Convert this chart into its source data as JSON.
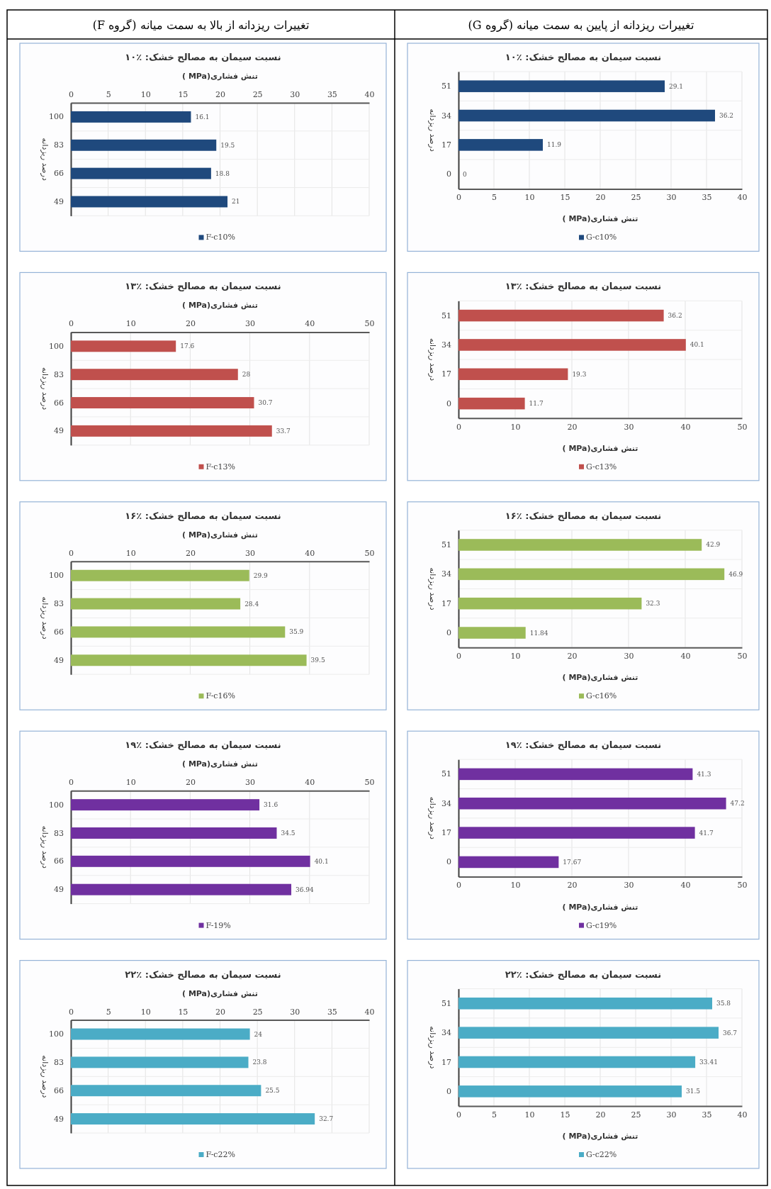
{
  "chart_data": [
    {
      "type": "bar",
      "orientation": "horizontal",
      "title": "نسبت سیمان به مصالح خشک: ٪۱۰",
      "annotations": [
        "تغییرات ریزدانه از بالا به سمت میانه (گروه F)"
      ],
      "x2label": "تنش فشاری(MPa )",
      "ylabel": "درصد ریزدانه",
      "categories": [
        "100",
        "83",
        "66",
        "49"
      ],
      "x2lim": [
        0,
        40
      ],
      "x2ticks": [
        0,
        5,
        10,
        15,
        20,
        25,
        30,
        35,
        40
      ],
      "grid": true,
      "legend": "bottom",
      "data_labels": true,
      "series": [
        {
          "name": "F-c10%",
          "color": "#1f497d",
          "values": [
            16.1,
            19.5,
            18.8,
            21
          ]
        }
      ]
    },
    {
      "type": "bar",
      "orientation": "horizontal",
      "title": "نسبت سیمان به مصالح خشک: ٪۱۰",
      "annotations": [
        "تغییرات ریزدانه از پایین به سمت میانه (گروه G)"
      ],
      "xlabel": "تنش فشاری(MPa )",
      "ylabel": "درصد ریزدانه",
      "categories": [
        "51",
        "34",
        "17",
        "0"
      ],
      "xlim": [
        0,
        40
      ],
      "xticks": [
        0,
        5,
        10,
        15,
        20,
        25,
        30,
        35,
        40
      ],
      "grid": true,
      "legend": "bottom",
      "data_labels": true,
      "series": [
        {
          "name": "G-c10%",
          "color": "#1f497d",
          "values": [
            29.1,
            36.2,
            11.9,
            0
          ]
        }
      ]
    },
    {
      "type": "bar",
      "orientation": "horizontal",
      "title": "نسبت سیمان به مصالح خشک: ٪۱۳",
      "x2label": "تنش فشاری(MPa )",
      "ylabel": "درصد ریزدانه",
      "categories": [
        "100",
        "83",
        "66",
        "49"
      ],
      "x2lim": [
        0,
        50
      ],
      "x2ticks": [
        0,
        10,
        20,
        30,
        40,
        50
      ],
      "grid": true,
      "legend": "bottom",
      "data_labels": true,
      "series": [
        {
          "name": "F-c13%",
          "color": "#c0504d",
          "values": [
            17.6,
            28,
            30.7,
            33.7
          ]
        }
      ]
    },
    {
      "type": "bar",
      "orientation": "horizontal",
      "title": "نسبت سیمان به مصالح خشک: ٪۱۳",
      "xlabel": "تنش فشاری(MPa )",
      "ylabel": "درصد ریزدانه",
      "categories": [
        "51",
        "34",
        "17",
        "0"
      ],
      "xlim": [
        0,
        50
      ],
      "xticks": [
        0,
        10,
        20,
        30,
        40,
        50
      ],
      "grid": true,
      "legend": "bottom",
      "data_labels": true,
      "series": [
        {
          "name": "G-c13%",
          "color": "#c0504d",
          "values": [
            36.2,
            40.1,
            19.3,
            11.7
          ]
        }
      ]
    },
    {
      "type": "bar",
      "orientation": "horizontal",
      "title": "نسبت سیمان به مصالح خشک: ٪۱۶",
      "x2label": "تنش فشاری(MPa )",
      "ylabel": "درصد ریزدانه",
      "categories": [
        "100",
        "83",
        "66",
        "49"
      ],
      "x2lim": [
        0,
        50
      ],
      "x2ticks": [
        0,
        10,
        20,
        30,
        40,
        50
      ],
      "grid": true,
      "legend": "bottom",
      "data_labels": true,
      "series": [
        {
          "name": "F-c16%",
          "color": "#9bbb59",
          "values": [
            29.9,
            28.4,
            35.9,
            39.5
          ]
        }
      ]
    },
    {
      "type": "bar",
      "orientation": "horizontal",
      "title": "نسبت سیمان به مصالح خشک: ٪۱۶",
      "xlabel": "تنش فشاری(MPa )",
      "ylabel": "درصد ریزدانه",
      "categories": [
        "51",
        "34",
        "17",
        "0"
      ],
      "xlim": [
        0,
        50
      ],
      "xticks": [
        0,
        10,
        20,
        30,
        40,
        50
      ],
      "grid": true,
      "legend": "bottom",
      "data_labels": true,
      "series": [
        {
          "name": "G-c16%",
          "color": "#9bbb59",
          "values": [
            42.9,
            46.9,
            32.3,
            11.84
          ]
        }
      ]
    },
    {
      "type": "bar",
      "orientation": "horizontal",
      "title": "نسبت سیمان به مصالح خشک: ٪۱۹",
      "x2label": "تنش فشاری(MPa )",
      "ylabel": "درصد ریزدانه",
      "categories": [
        "100",
        "83",
        "66",
        "49"
      ],
      "x2lim": [
        0,
        50
      ],
      "x2ticks": [
        0,
        10,
        20,
        30,
        40,
        50
      ],
      "grid": true,
      "legend": "bottom",
      "data_labels": true,
      "series": [
        {
          "name": "F-19%",
          "color": "#7030a0",
          "values": [
            31.6,
            34.5,
            40.1,
            36.94
          ]
        }
      ]
    },
    {
      "type": "bar",
      "orientation": "horizontal",
      "title": "نسبت سیمان به مصالح خشک: ٪۱۹",
      "xlabel": "تنش فشاری(MPa )",
      "ylabel": "درصد ریزدانه",
      "categories": [
        "51",
        "34",
        "17",
        "0"
      ],
      "xlim": [
        0,
        50
      ],
      "xticks": [
        0,
        10,
        20,
        30,
        40,
        50
      ],
      "grid": true,
      "legend": "bottom",
      "data_labels": true,
      "series": [
        {
          "name": "G-c19%",
          "color": "#7030a0",
          "values": [
            41.3,
            47.2,
            41.7,
            17.67
          ]
        }
      ]
    },
    {
      "type": "bar",
      "orientation": "horizontal",
      "title": "نسبت سیمان به مصالح خشک: ٪۲۲",
      "x2label": "تنش فشاری(MPa )",
      "ylabel": "درصد ریزدانه",
      "categories": [
        "100",
        "83",
        "66",
        "49"
      ],
      "x2lim": [
        0,
        40
      ],
      "x2ticks": [
        0,
        5,
        10,
        15,
        20,
        25,
        30,
        35,
        40
      ],
      "grid": true,
      "legend": "bottom",
      "data_labels": true,
      "series": [
        {
          "name": "F-c22%",
          "color": "#4bacc6",
          "values": [
            24,
            23.8,
            25.5,
            32.7
          ]
        }
      ]
    },
    {
      "type": "bar",
      "orientation": "horizontal",
      "title": "نسبت سیمان به مصالح خشک: ٪۲۲",
      "xlabel": "تنش فشاری(MPa )",
      "ylabel": "درصد ریزدانه",
      "categories": [
        "51",
        "34",
        "17",
        "0"
      ],
      "xlim": [
        0,
        40
      ],
      "xticks": [
        0,
        5,
        10,
        15,
        20,
        25,
        30,
        35,
        40
      ],
      "grid": true,
      "legend": "bottom",
      "data_labels": true,
      "series": [
        {
          "name": "G-c22%",
          "color": "#4bacc6",
          "values": [
            35.8,
            36.7,
            33.41,
            31.5
          ]
        }
      ]
    }
  ]
}
